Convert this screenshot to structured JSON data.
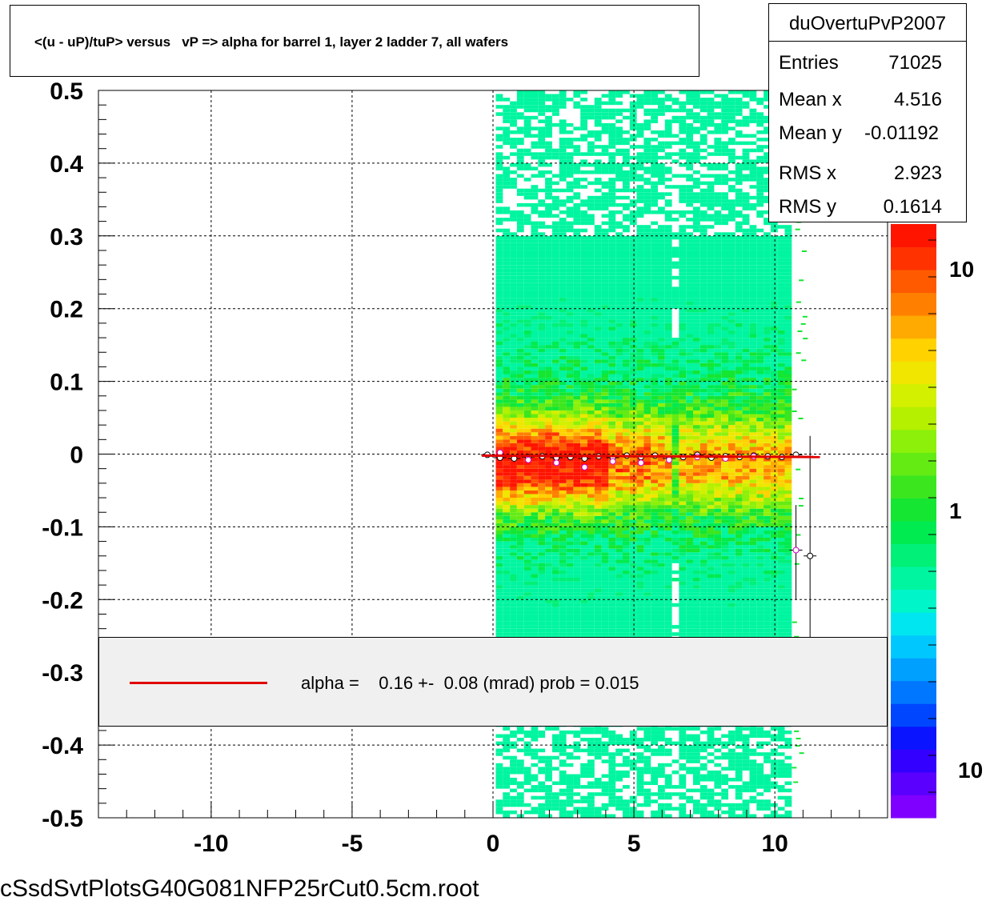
{
  "title": "<(u - uP)/tuP> versus   vP => alpha for barrel 1, layer 2 ladder 7, all wafers",
  "stats": {
    "name": "duOvertuPvP2007",
    "rows": [
      {
        "key": "Entries",
        "value": "71025"
      },
      {
        "key": "Mean x",
        "value": "4.516"
      },
      {
        "key": "Mean y",
        "value": "-0.01192"
      },
      {
        "key": "RMS x",
        "value": "2.923"
      },
      {
        "key": "RMS y",
        "value": "0.1614"
      }
    ]
  },
  "legend": {
    "text": "alpha =    0.16 +-  0.08 (mrad) prob = 0.015",
    "line_color": "#e00000"
  },
  "footer": "cSsdSvtPlotsG40G081NFP25rCut0.5cm.root",
  "chart_data": {
    "type": "heatmap",
    "xlim": [
      -14,
      14
    ],
    "ylim": [
      -0.5,
      0.5
    ],
    "x_ticks": [
      "-10",
      "-5",
      "0",
      "5",
      "10"
    ],
    "x_tick_values": [
      -10,
      -5,
      0,
      5,
      10
    ],
    "y_ticks": [
      "0.5",
      "0.4",
      "0.3",
      "0.2",
      "0.1",
      "0",
      "-0.1",
      "-0.2",
      "-0.3",
      "-0.4",
      "-0.5"
    ],
    "y_tick_values": [
      0.5,
      0.4,
      0.3,
      0.2,
      0.1,
      0,
      -0.1,
      -0.2,
      -0.3,
      -0.4,
      -0.5
    ],
    "grid": true,
    "colorbar": {
      "labels": [
        "10",
        "1",
        "10"
      ],
      "colors": [
        "#7f00ff",
        "#5a00ff",
        "#3300ff",
        "#0a14ff",
        "#0046ff",
        "#0077ff",
        "#00a0ff",
        "#00c8ff",
        "#00e6f0",
        "#00f5c8",
        "#00f5a0",
        "#00f078",
        "#00eb50",
        "#14e632",
        "#3ce61e",
        "#64eb14",
        "#8cf00a",
        "#b4f000",
        "#d2f000",
        "#f0e600",
        "#ffd200",
        "#ffaa00",
        "#ff8000",
        "#ff5a00",
        "#ff3200",
        "#ff1400"
      ]
    },
    "profile_points": [
      {
        "x": -0.2,
        "y": -0.001
      },
      {
        "x": 0.25,
        "y": -0.005
      },
      {
        "x": 0.75,
        "y": -0.006
      },
      {
        "x": 1.25,
        "y": -0.004
      },
      {
        "x": 1.75,
        "y": -0.003
      },
      {
        "x": 2.25,
        "y": -0.005
      },
      {
        "x": 2.75,
        "y": -0.004
      },
      {
        "x": 3.25,
        "y": -0.006
      },
      {
        "x": 3.75,
        "y": -0.003
      },
      {
        "x": 4.25,
        "y": -0.005
      },
      {
        "x": 4.75,
        "y": -0.002
      },
      {
        "x": 5.25,
        "y": -0.004
      },
      {
        "x": 5.75,
        "y": -0.002
      },
      {
        "x": 6.25,
        "y": -0.006
      },
      {
        "x": 6.75,
        "y": -0.004
      },
      {
        "x": 7.25,
        "y": -0.001
      },
      {
        "x": 7.75,
        "y": -0.005
      },
      {
        "x": 8.25,
        "y": -0.003
      },
      {
        "x": 8.75,
        "y": -0.004
      },
      {
        "x": 9.25,
        "y": -0.002
      },
      {
        "x": 9.75,
        "y": -0.003
      },
      {
        "x": 10.25,
        "y": -0.004
      },
      {
        "x": 10.75,
        "y": -0.001
      },
      {
        "x": 11.25,
        "y": -0.14
      }
    ],
    "profile_points_alt": [
      {
        "x": 0.25,
        "y": 0.002
      },
      {
        "x": 1.25,
        "y": -0.008
      },
      {
        "x": 2.25,
        "y": -0.012
      },
      {
        "x": 3.25,
        "y": -0.018
      },
      {
        "x": 4.25,
        "y": -0.01
      },
      {
        "x": 5.25,
        "y": -0.012
      },
      {
        "x": 6.25,
        "y": -0.008
      },
      {
        "x": 7.25,
        "y": -0.004
      },
      {
        "x": 8.25,
        "y": -0.006
      },
      {
        "x": 9.25,
        "y": -0.003
      },
      {
        "x": 10.75,
        "y": -0.132
      }
    ],
    "fit_line": {
      "x": [
        -0.4,
        11.6
      ],
      "y": [
        -0.002,
        -0.004
      ],
      "color": "#e00000"
    }
  }
}
